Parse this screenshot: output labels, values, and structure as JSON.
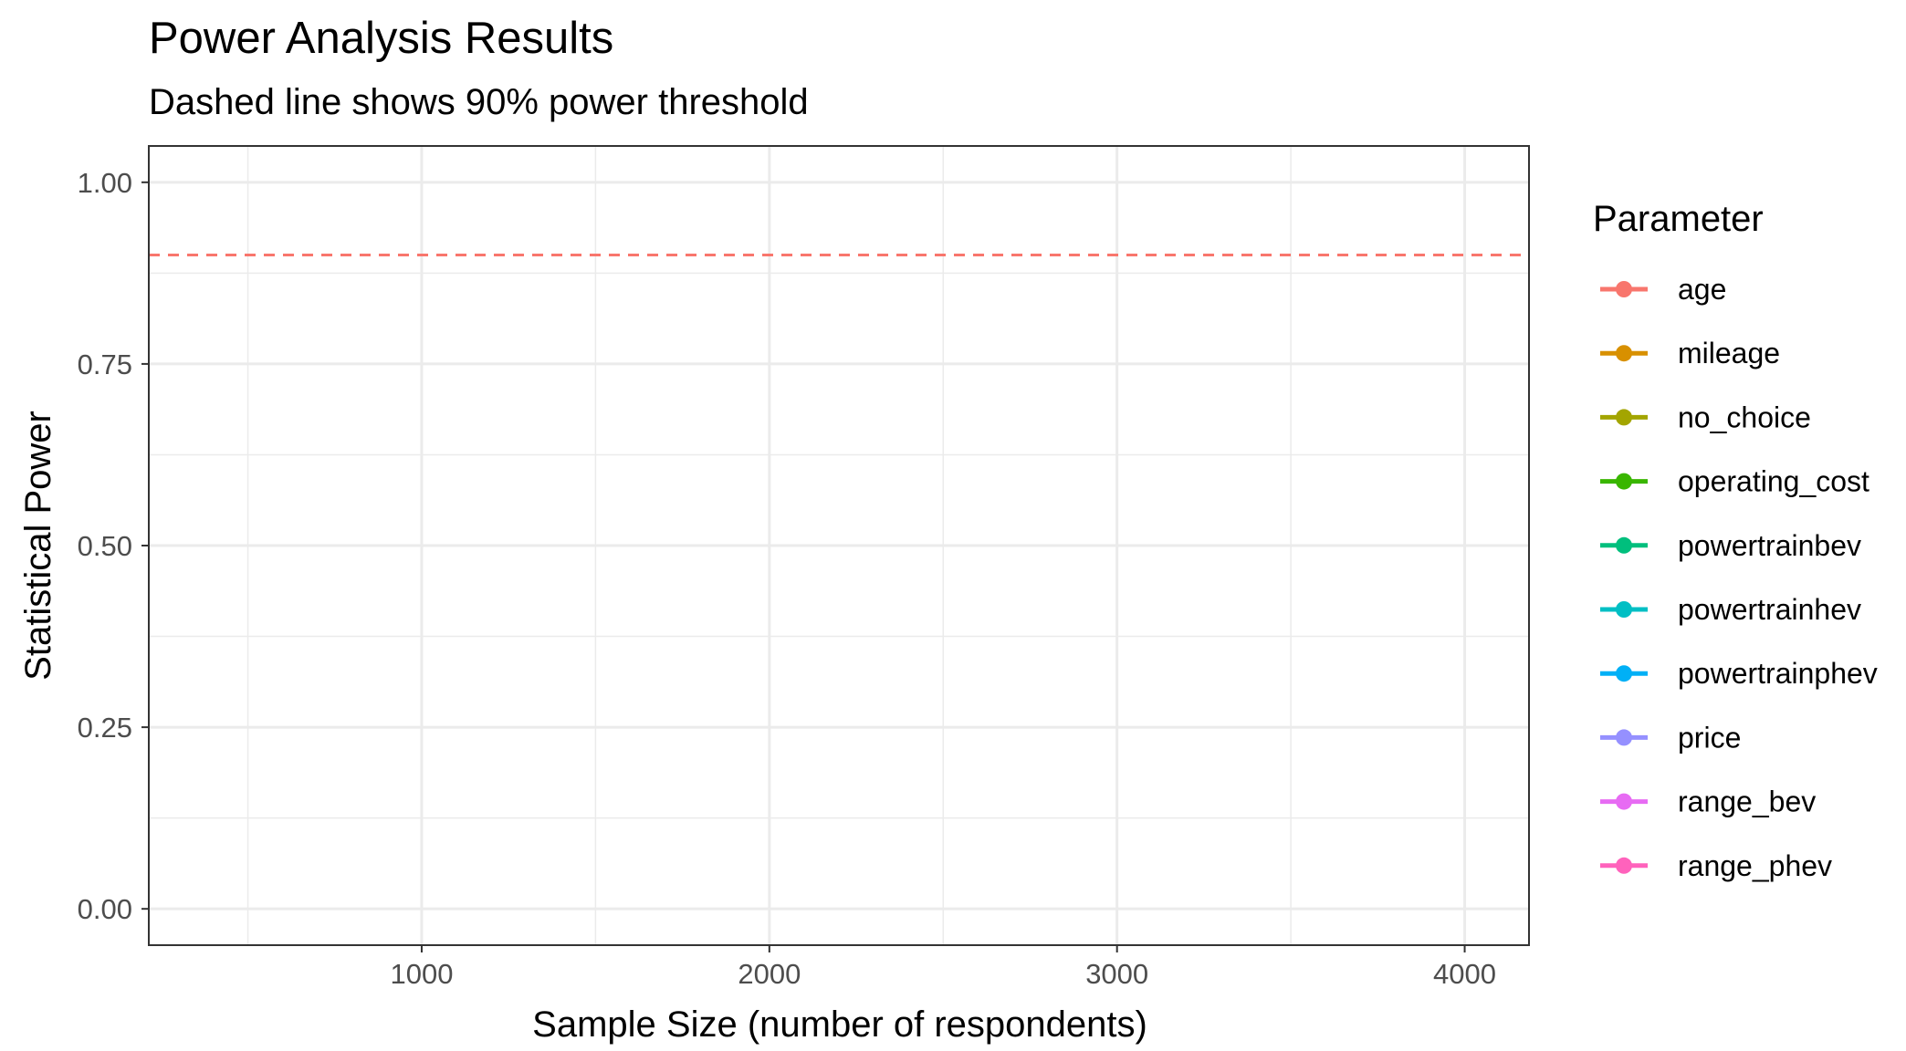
{
  "chart_data": {
    "type": "line",
    "title": "Power Analysis Results",
    "subtitle": "Dashed line shows 90% power threshold",
    "xlabel": "Sample Size (number of respondents)",
    "ylabel": "Statistical Power",
    "xlim": [
      215,
      4185
    ],
    "ylim": [
      -0.05,
      1.05
    ],
    "x_ticks": [
      {
        "value": 1000,
        "label": "1000"
      },
      {
        "value": 2000,
        "label": "2000"
      },
      {
        "value": 3000,
        "label": "3000"
      },
      {
        "value": 4000,
        "label": "4000"
      }
    ],
    "x_minor_ticks": [
      500,
      1500,
      2500,
      3500
    ],
    "y_ticks": [
      {
        "value": 0.0,
        "label": "0.00"
      },
      {
        "value": 0.25,
        "label": "0.25"
      },
      {
        "value": 0.5,
        "label": "0.50"
      },
      {
        "value": 0.75,
        "label": "0.75"
      },
      {
        "value": 1.0,
        "label": "1.00"
      }
    ],
    "y_minor_ticks": [
      0.125,
      0.375,
      0.625,
      0.875
    ],
    "grid": true,
    "reference_line": {
      "y": 0.9,
      "style": "dashed",
      "color": "#F8766D"
    },
    "legend": {
      "title": "Parameter",
      "position": "right",
      "entries": [
        {
          "label": "age",
          "color": "#F8766D"
        },
        {
          "label": "mileage",
          "color": "#D89000"
        },
        {
          "label": "no_choice",
          "color": "#A3A500"
        },
        {
          "label": "operating_cost",
          "color": "#39B600"
        },
        {
          "label": "powertrainbev",
          "color": "#00BF7D"
        },
        {
          "label": "powertrainhev",
          "color": "#00BFC4"
        },
        {
          "label": "powertrainphev",
          "color": "#00B0F6"
        },
        {
          "label": "price",
          "color": "#9590FF"
        },
        {
          "label": "range_bev",
          "color": "#E76BF3"
        },
        {
          "label": "range_phev",
          "color": "#FF62BC"
        }
      ]
    },
    "series": []
  }
}
